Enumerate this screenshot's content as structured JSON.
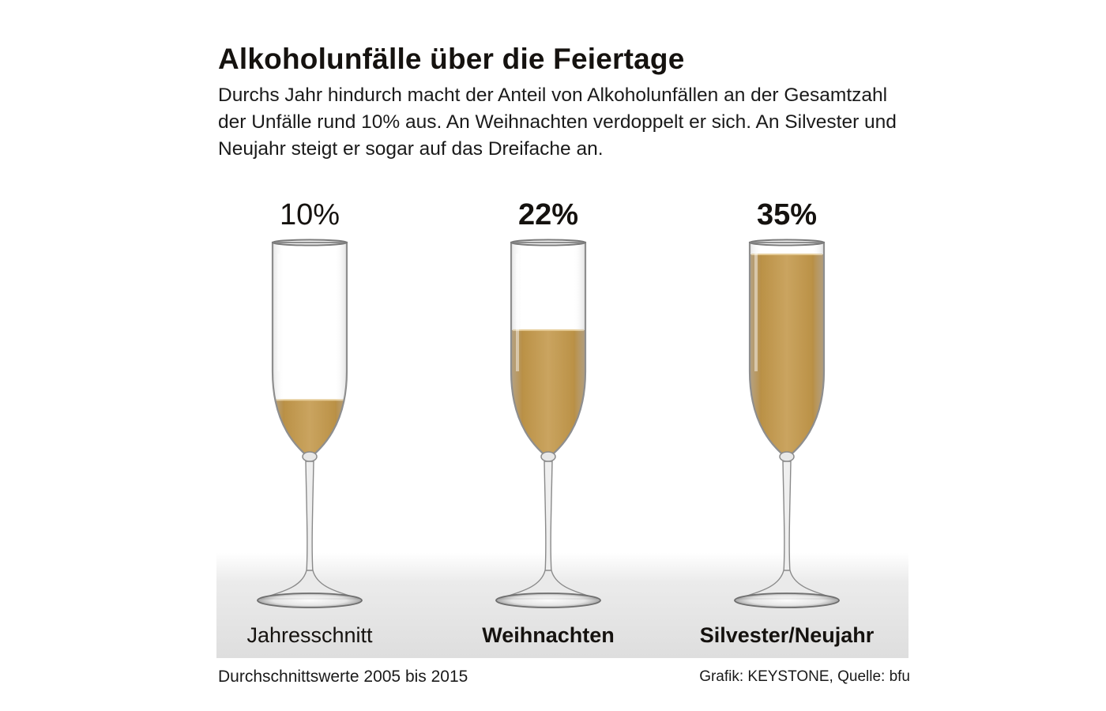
{
  "title": "Alkoholunfälle über die Feiertage",
  "subtitle": "Durchs Jahr hindurch macht der Anteil von Alkoholunfällen an der Gesamtzahl der Unfälle rund 10% aus. An Weihnachten verdoppelt er sich. An Silvester und Neujahr steigt er sogar auf das Dreifache an.",
  "footer": {
    "note": "Durchschnittswerte 2005 bis 2015",
    "source": "Grafik: KEYSTONE, Quelle: bfu"
  },
  "colors": {
    "liquid": "#b8893a",
    "glass": "#9a9a9a"
  },
  "chart_data": {
    "type": "bar",
    "categories": [
      "Jahresschnitt",
      "Weihnachten",
      "Silvester/Neujahr"
    ],
    "values": [
      10,
      22,
      35
    ],
    "value_labels": [
      "10%",
      "22%",
      "35%"
    ],
    "unit": "%",
    "title": "Alkoholunfälle über die Feiertage",
    "ylim": [
      0,
      35
    ],
    "bold": [
      false,
      true,
      true
    ],
    "legend": "none",
    "grid": false
  }
}
